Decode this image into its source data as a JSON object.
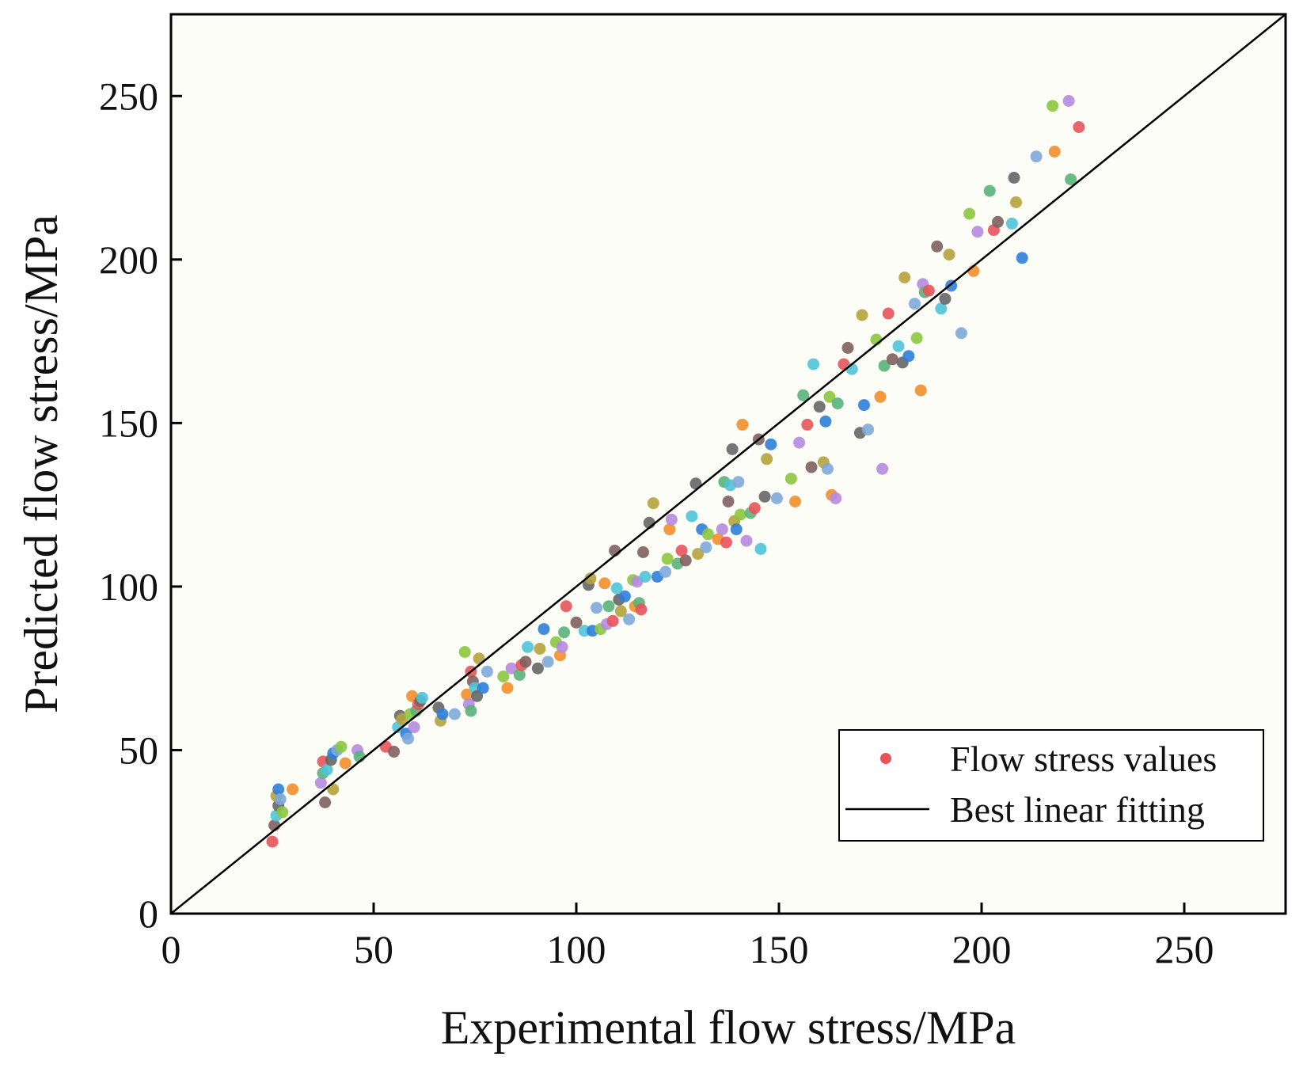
{
  "chart_data": {
    "type": "scatter",
    "title": "",
    "xlabel": "Experimental flow stress/MPa",
    "ylabel": "Predicted flow stress/MPa",
    "xlim": [
      0,
      275
    ],
    "ylim": [
      0,
      275
    ],
    "xticks": [
      0,
      50,
      100,
      150,
      200,
      250
    ],
    "yticks": [
      0,
      50,
      100,
      150,
      200,
      250
    ],
    "xtick_labels": [
      "0",
      "50",
      "100",
      "150",
      "200",
      "250"
    ],
    "ytick_labels": [
      "0",
      "50",
      "100",
      "150",
      "200",
      "250"
    ],
    "grid": false,
    "legend_position": "bottom-right",
    "legend": [
      {
        "label": "Flow stress values",
        "kind": "marker",
        "color": "#e8545a"
      },
      {
        "label": "Best linear fitting",
        "kind": "line",
        "color": "#000000"
      }
    ],
    "fit_line": {
      "x": [
        0,
        275
      ],
      "y": [
        0,
        275
      ],
      "color": "#000000"
    },
    "palette": [
      "#e8545a",
      "#f28e2b",
      "#2f7ed8",
      "#4fc3d8",
      "#59b37a",
      "#8cc63f",
      "#b5a33a",
      "#7f6060",
      "#b58be0",
      "#7ea9d9",
      "#666666"
    ],
    "series": [
      {
        "name": "Flow stress values",
        "points": [
          [
            25,
            22
          ],
          [
            25.5,
            27
          ],
          [
            26,
            30
          ],
          [
            26.5,
            33
          ],
          [
            26,
            36
          ],
          [
            26.5,
            38
          ],
          [
            27,
            35
          ],
          [
            27.5,
            31
          ],
          [
            30,
            38
          ],
          [
            37,
            40
          ],
          [
            37.5,
            43
          ],
          [
            37.5,
            46.5
          ],
          [
            38,
            34
          ],
          [
            38.5,
            44
          ],
          [
            39.5,
            47
          ],
          [
            40,
            38
          ],
          [
            40,
            49
          ],
          [
            41,
            50
          ],
          [
            42,
            51
          ],
          [
            43,
            46
          ],
          [
            46,
            50
          ],
          [
            46.5,
            48
          ],
          [
            53,
            51
          ],
          [
            55,
            49.5
          ],
          [
            56,
            57
          ],
          [
            56.5,
            60.5
          ],
          [
            57,
            59.5
          ],
          [
            58,
            55
          ],
          [
            58.5,
            53.5
          ],
          [
            59,
            61
          ],
          [
            59.5,
            66.5
          ],
          [
            60,
            57
          ],
          [
            60.5,
            62
          ],
          [
            61,
            64
          ],
          [
            61.5,
            65
          ],
          [
            62,
            66
          ],
          [
            66,
            63
          ],
          [
            66.5,
            59
          ],
          [
            67,
            61
          ],
          [
            70,
            61
          ],
          [
            72.5,
            80
          ],
          [
            73,
            67
          ],
          [
            73.5,
            64
          ],
          [
            74,
            62
          ],
          [
            74,
            74
          ],
          [
            74.5,
            71
          ],
          [
            75,
            69
          ],
          [
            75.5,
            66.5
          ],
          [
            76,
            78
          ],
          [
            77,
            69
          ],
          [
            78,
            74
          ],
          [
            82,
            72.5
          ],
          [
            83,
            69
          ],
          [
            84,
            75
          ],
          [
            86,
            73
          ],
          [
            86.5,
            76
          ],
          [
            87.5,
            77
          ],
          [
            88,
            81.5
          ],
          [
            90.5,
            75
          ],
          [
            91,
            81
          ],
          [
            92,
            87
          ],
          [
            93,
            77
          ],
          [
            95,
            83
          ],
          [
            96,
            79
          ],
          [
            96.5,
            81.5
          ],
          [
            97,
            86
          ],
          [
            97.5,
            94
          ],
          [
            100,
            89
          ],
          [
            102,
            86.5
          ],
          [
            103,
            100.5
          ],
          [
            103.5,
            102.5
          ],
          [
            104,
            86.5
          ],
          [
            105,
            93.5
          ],
          [
            106,
            87
          ],
          [
            107,
            101
          ],
          [
            107.5,
            88.5
          ],
          [
            108,
            94
          ],
          [
            109,
            89.5
          ],
          [
            109.5,
            111
          ],
          [
            110,
            99.5
          ],
          [
            110.5,
            96
          ],
          [
            111,
            92.5
          ],
          [
            112,
            97
          ],
          [
            113,
            90
          ],
          [
            114,
            102
          ],
          [
            114.5,
            94
          ],
          [
            115,
            101.5
          ],
          [
            115.5,
            95
          ],
          [
            116,
            93
          ],
          [
            116.5,
            110.5
          ],
          [
            117,
            103
          ],
          [
            118,
            119.5
          ],
          [
            119,
            125.5
          ],
          [
            120,
            103
          ],
          [
            122,
            104.5
          ],
          [
            122.5,
            108.5
          ],
          [
            123,
            117.5
          ],
          [
            123.5,
            120.5
          ],
          [
            125,
            107
          ],
          [
            126,
            111
          ],
          [
            127,
            108
          ],
          [
            128.5,
            121.5
          ],
          [
            129.5,
            131.5
          ],
          [
            130,
            110
          ],
          [
            131,
            117.5
          ],
          [
            132,
            112
          ],
          [
            132.5,
            116
          ],
          [
            135,
            114.5
          ],
          [
            136,
            117.5
          ],
          [
            136.5,
            132
          ],
          [
            137,
            113.5
          ],
          [
            137.5,
            126
          ],
          [
            138,
            131
          ],
          [
            138.5,
            142
          ],
          [
            139,
            120
          ],
          [
            139.5,
            117.5
          ],
          [
            140,
            132
          ],
          [
            140.5,
            122
          ],
          [
            141,
            149.5
          ],
          [
            142,
            114
          ],
          [
            143,
            122.5
          ],
          [
            144,
            124
          ],
          [
            145,
            145
          ],
          [
            145.5,
            111.5
          ],
          [
            146.5,
            127.5
          ],
          [
            147,
            139
          ],
          [
            148,
            143.5
          ],
          [
            149.5,
            127
          ],
          [
            153,
            133
          ],
          [
            154,
            126
          ],
          [
            155,
            144
          ],
          [
            156,
            158.5
          ],
          [
            157,
            149.5
          ],
          [
            158,
            136.5
          ],
          [
            158.5,
            168
          ],
          [
            160,
            155
          ],
          [
            161,
            138
          ],
          [
            161.5,
            150.5
          ],
          [
            162,
            136
          ],
          [
            162.5,
            158
          ],
          [
            163,
            128
          ],
          [
            164,
            127
          ],
          [
            164.5,
            156
          ],
          [
            166,
            168
          ],
          [
            167,
            173
          ],
          [
            168,
            166.5
          ],
          [
            170,
            147
          ],
          [
            170.5,
            183
          ],
          [
            171,
            155.5
          ],
          [
            172,
            148
          ],
          [
            174,
            175.5
          ],
          [
            175,
            158
          ],
          [
            175.5,
            136
          ],
          [
            176,
            167.5
          ],
          [
            177,
            183.5
          ],
          [
            178,
            169.5
          ],
          [
            179.5,
            173.5
          ],
          [
            180.5,
            168.5
          ],
          [
            181,
            194.5
          ],
          [
            182,
            170.5
          ],
          [
            183.5,
            186.5
          ],
          [
            184,
            176
          ],
          [
            185,
            160
          ],
          [
            185.5,
            192.5
          ],
          [
            186,
            190
          ],
          [
            187,
            190.5
          ],
          [
            189,
            204
          ],
          [
            190,
            185
          ],
          [
            191,
            188
          ],
          [
            192,
            201.5
          ],
          [
            192.5,
            192
          ],
          [
            195,
            177.5
          ],
          [
            197,
            214
          ],
          [
            198,
            196.5
          ],
          [
            199,
            208.5
          ],
          [
            202,
            221
          ],
          [
            203,
            209
          ],
          [
            204,
            211.5
          ],
          [
            207.5,
            211
          ],
          [
            208,
            225
          ],
          [
            208.5,
            217.5
          ],
          [
            210,
            200.5
          ],
          [
            213.5,
            231.5
          ],
          [
            217.5,
            247
          ],
          [
            218,
            233
          ],
          [
            221.5,
            248.5
          ],
          [
            222,
            224.5
          ],
          [
            224,
            240.5
          ]
        ]
      }
    ]
  }
}
